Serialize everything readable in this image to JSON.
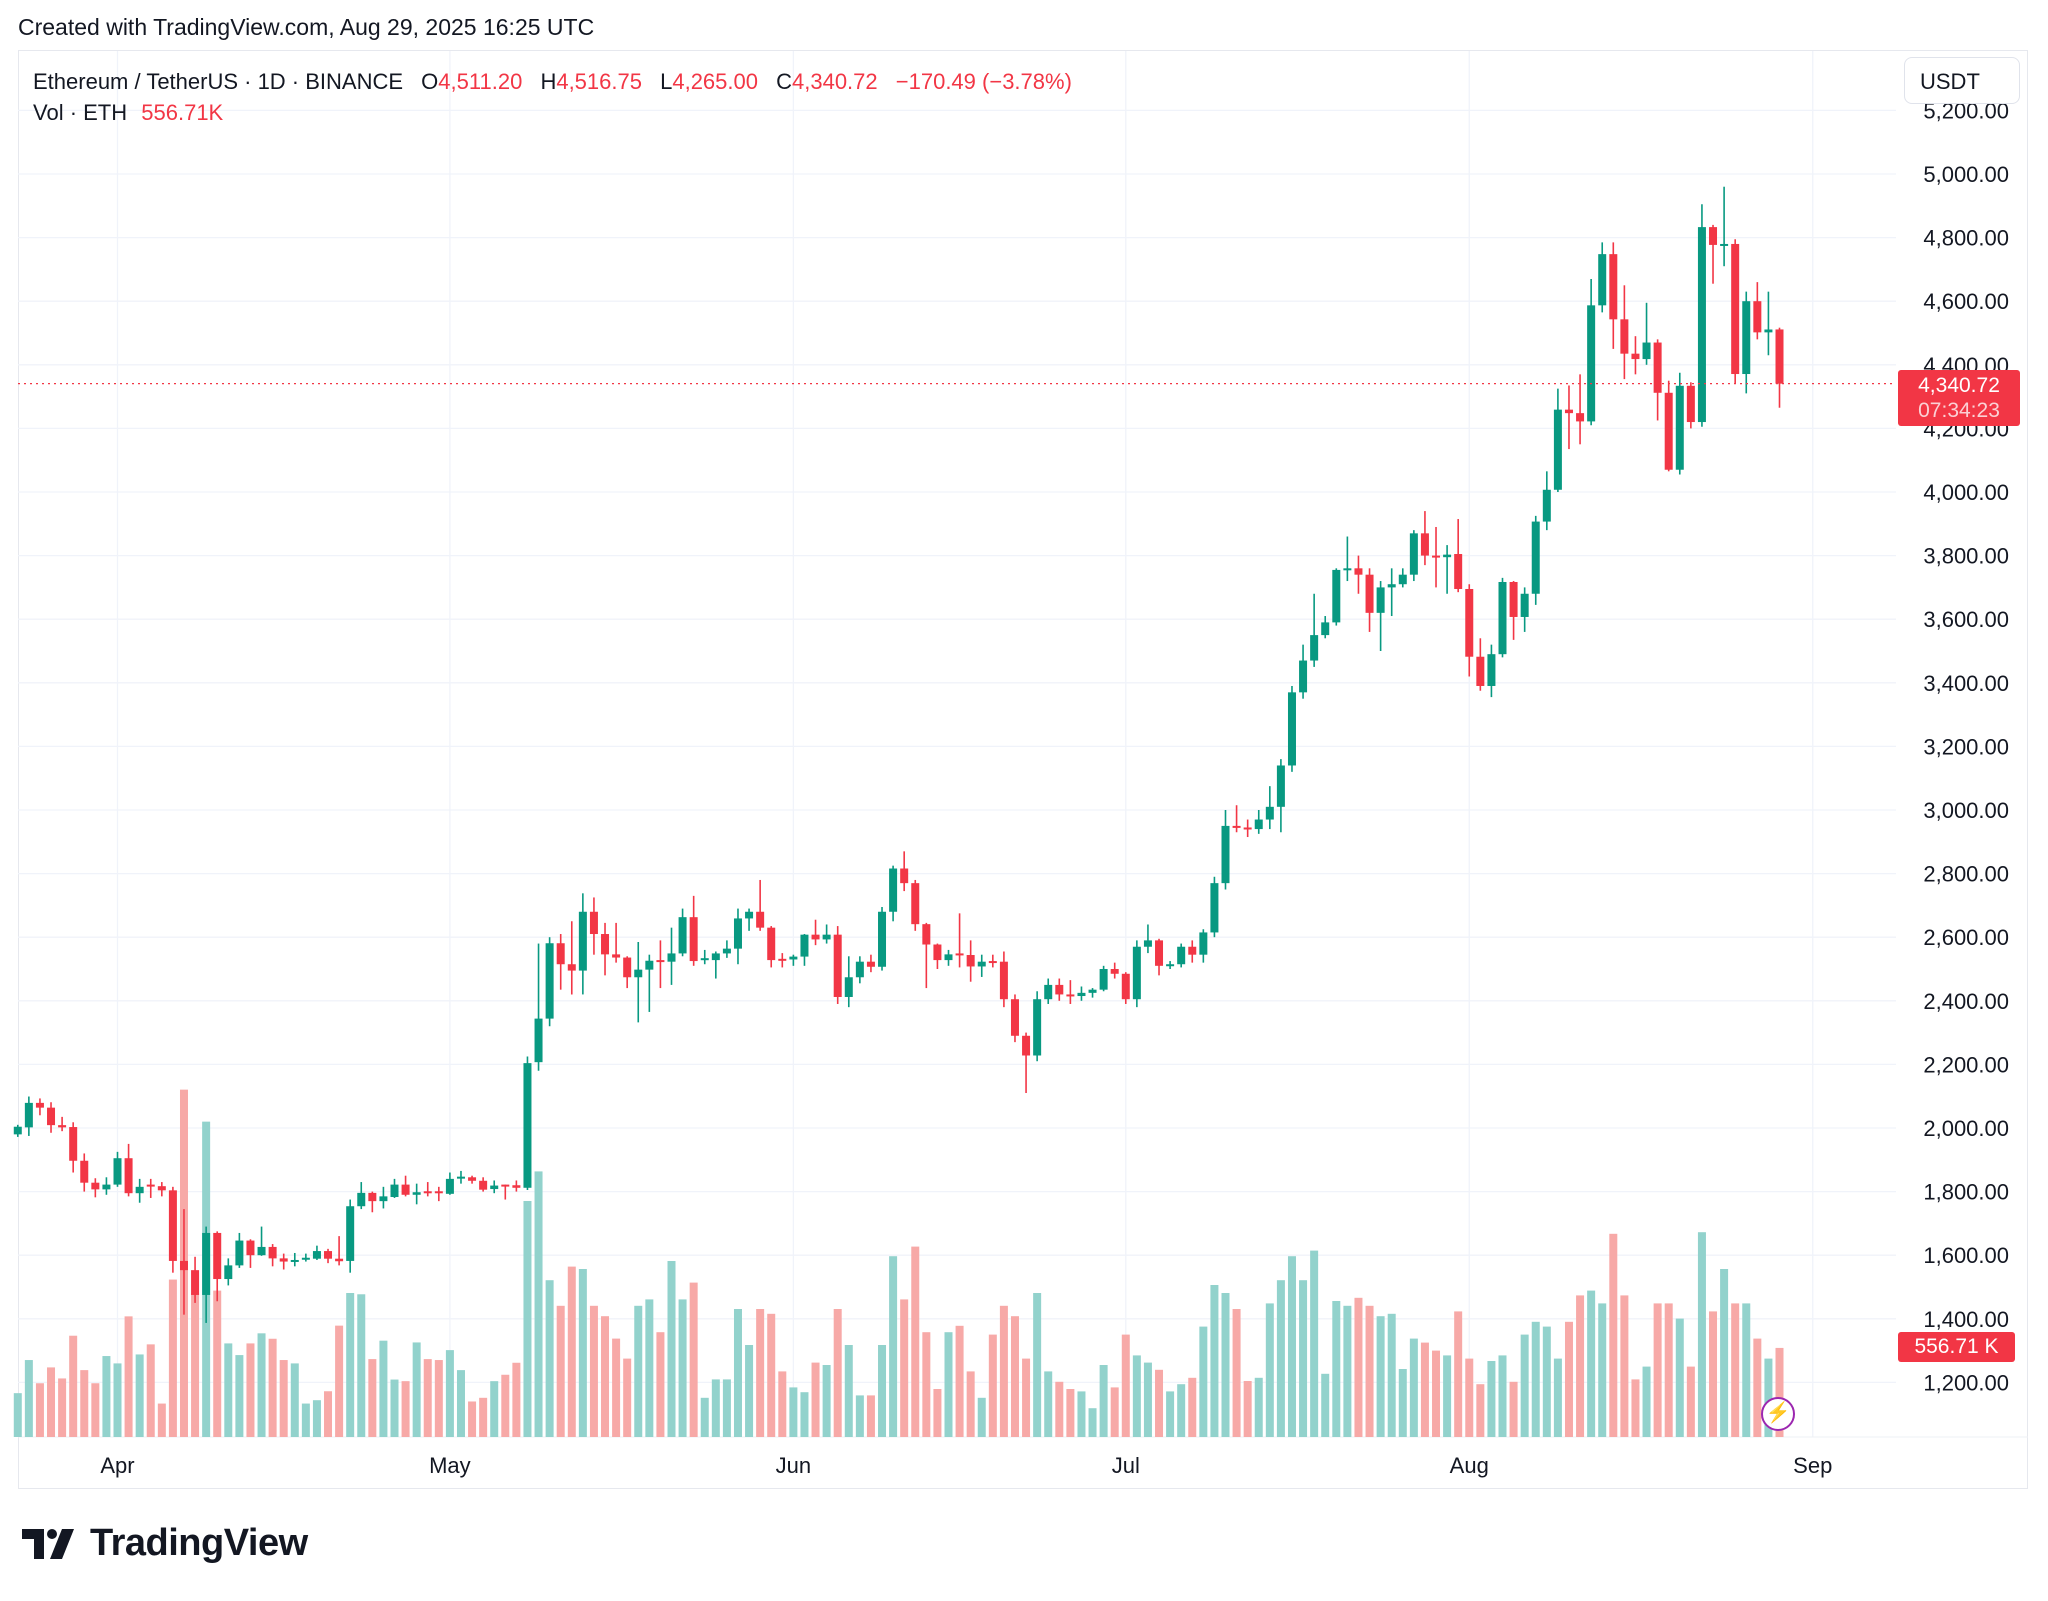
{
  "created_text": "Created with TradingView.com, Aug 29, 2025 16:25 UTC",
  "legend": {
    "symbol": "Ethereum / TetherUS · 1D · BINANCE",
    "o_label": "O",
    "o": "4,511.20",
    "h_label": "H",
    "h": "4,516.75",
    "l_label": "L",
    "l": "4,265.00",
    "c_label": "C",
    "c": "4,340.72",
    "change": "−170.49 (−3.78%)",
    "vol_label": "Vol · ETH",
    "vol": "556.71K"
  },
  "currency_button": "USDT",
  "price_tag": {
    "price": "4,340.72",
    "countdown": "07:34:23"
  },
  "volume_tag": "556.71 K",
  "brand": "TradingView",
  "colors": {
    "up": "#089981",
    "down": "#f23645",
    "up_volume": "#92d2cc",
    "down_volume": "#f7a9a7",
    "grid": "#f0f3fa",
    "last_price_line": "#f23645",
    "alert_icon": "#9c27b0"
  },
  "icons": {
    "alert": "lightning-icon",
    "logo": "tradingview-logo-icon"
  },
  "chart_data": {
    "type": "candlestick",
    "symbol": "ETHUSDT",
    "interval": "1D",
    "y_axis": {
      "ticks": [
        5200,
        5000,
        4800,
        4600,
        4400,
        4200,
        4000,
        3800,
        3600,
        3400,
        3200,
        3000,
        2800,
        2600,
        2400,
        2200,
        2000,
        1800,
        1600,
        1400,
        1200
      ],
      "tick_labels": [
        "5,200.00",
        "5,000.00",
        "4,800.00",
        "4,600.00",
        "4,400.00",
        "4,200.00",
        "4,000.00",
        "3,800.00",
        "3,600.00",
        "3,400.00",
        "3,200.00",
        "3,000.00",
        "2,800.00",
        "2,600.00",
        "2,400.00",
        "2,200.00",
        "2,000.00",
        "1,800.00",
        "1,600.00",
        "1,400.00",
        "1,200.00"
      ],
      "side": "right"
    },
    "x_axis": {
      "ticks": [
        "2025-04-01",
        "2025-05-01",
        "2025-06-01",
        "2025-07-01",
        "2025-08-01",
        "2025-09-01"
      ],
      "tick_labels": [
        "Apr",
        "May",
        "Jun",
        "Jul",
        "Aug",
        "Sep"
      ]
    },
    "grid": true,
    "last_price": 4340.72,
    "volume_unit": "K ETH",
    "columns": [
      "date",
      "open",
      "high",
      "low",
      "close",
      "volume"
    ],
    "candles": [
      [
        "2025-03-23",
        1980,
        2010,
        1972,
        2004,
        274
      ],
      [
        "2025-03-24",
        2002,
        2099,
        1975,
        2079,
        481
      ],
      [
        "2025-03-25",
        2079,
        2093,
        2040,
        2064,
        336
      ],
      [
        "2025-03-26",
        2064,
        2081,
        1985,
        2009,
        435
      ],
      [
        "2025-03-27",
        2009,
        2035,
        1990,
        2002,
        366
      ],
      [
        "2025-03-28",
        2003,
        2018,
        1860,
        1897,
        633
      ],
      [
        "2025-03-29",
        1897,
        1920,
        1800,
        1828,
        418
      ],
      [
        "2025-03-30",
        1828,
        1842,
        1782,
        1807,
        336
      ],
      [
        "2025-03-31",
        1807,
        1845,
        1790,
        1822,
        506
      ],
      [
        "2025-04-01",
        1822,
        1925,
        1815,
        1905,
        460
      ],
      [
        "2025-04-02",
        1905,
        1950,
        1785,
        1795,
        754
      ],
      [
        "2025-04-03",
        1795,
        1840,
        1765,
        1815,
        516
      ],
      [
        "2025-04-04",
        1822,
        1840,
        1780,
        1819,
        579
      ],
      [
        "2025-04-05",
        1817,
        1830,
        1785,
        1804,
        209
      ],
      [
        "2025-04-06",
        1804,
        1815,
        1545,
        1582,
        984
      ],
      [
        "2025-04-07",
        1582,
        1745,
        1413,
        1553,
        2171
      ],
      [
        "2025-04-08",
        1553,
        1595,
        1450,
        1475,
        900
      ],
      [
        "2025-04-09",
        1475,
        1690,
        1387,
        1670,
        1971
      ],
      [
        "2025-04-10",
        1670,
        1675,
        1455,
        1525,
        915
      ],
      [
        "2025-04-11",
        1525,
        1590,
        1505,
        1568,
        585
      ],
      [
        "2025-04-12",
        1568,
        1670,
        1560,
        1646,
        512
      ],
      [
        "2025-04-13",
        1646,
        1650,
        1560,
        1600,
        585
      ],
      [
        "2025-04-14",
        1600,
        1690,
        1598,
        1626,
        648
      ],
      [
        "2025-04-15",
        1626,
        1635,
        1565,
        1590,
        614
      ],
      [
        "2025-04-16",
        1590,
        1605,
        1555,
        1580,
        481
      ],
      [
        "2025-04-17",
        1582,
        1607,
        1565,
        1585,
        460
      ],
      [
        "2025-04-18",
        1588,
        1605,
        1580,
        1592,
        209
      ],
      [
        "2025-04-19",
        1589,
        1630,
        1585,
        1613,
        230
      ],
      [
        "2025-04-20",
        1613,
        1620,
        1575,
        1589,
        286
      ],
      [
        "2025-04-21",
        1589,
        1660,
        1568,
        1581,
        696
      ],
      [
        "2025-04-22",
        1582,
        1775,
        1545,
        1754,
        900
      ],
      [
        "2025-04-23",
        1754,
        1830,
        1745,
        1796,
        892
      ],
      [
        "2025-04-24",
        1796,
        1800,
        1735,
        1770,
        487
      ],
      [
        "2025-04-25",
        1770,
        1815,
        1747,
        1785,
        602
      ],
      [
        "2025-04-26",
        1783,
        1840,
        1780,
        1822,
        359
      ],
      [
        "2025-04-27",
        1822,
        1850,
        1785,
        1790,
        349
      ],
      [
        "2025-04-28",
        1790,
        1825,
        1760,
        1798,
        591
      ],
      [
        "2025-04-29",
        1801,
        1830,
        1785,
        1799,
        487
      ],
      [
        "2025-04-30",
        1801,
        1815,
        1770,
        1798,
        481
      ],
      [
        "2025-05-01",
        1793,
        1860,
        1790,
        1840,
        543
      ],
      [
        "2025-05-02",
        1843,
        1865,
        1825,
        1847,
        418
      ],
      [
        "2025-05-03",
        1845,
        1850,
        1825,
        1834,
        222
      ],
      [
        "2025-05-04",
        1834,
        1845,
        1800,
        1806,
        245
      ],
      [
        "2025-05-05",
        1808,
        1835,
        1795,
        1819,
        349
      ],
      [
        "2025-05-06",
        1822,
        1822,
        1775,
        1820,
        389
      ],
      [
        "2025-05-07",
        1820,
        1835,
        1800,
        1812,
        464
      ],
      [
        "2025-05-08",
        1812,
        2225,
        1805,
        2204,
        1475
      ],
      [
        "2025-05-09",
        2207,
        2580,
        2180,
        2344,
        1660
      ],
      [
        "2025-05-10",
        2344,
        2600,
        2320,
        2581,
        980
      ],
      [
        "2025-05-11",
        2581,
        2610,
        2435,
        2515,
        820
      ],
      [
        "2025-05-12",
        2515,
        2650,
        2420,
        2495,
        1065
      ],
      [
        "2025-05-13",
        2495,
        2738,
        2420,
        2680,
        1050
      ],
      [
        "2025-05-14",
        2680,
        2725,
        2545,
        2610,
        820
      ],
      [
        "2025-05-15",
        2610,
        2645,
        2480,
        2546,
        755
      ],
      [
        "2025-05-16",
        2546,
        2645,
        2520,
        2536,
        615
      ],
      [
        "2025-05-17",
        2536,
        2540,
        2440,
        2474,
        490
      ],
      [
        "2025-05-18",
        2474,
        2585,
        2332,
        2498,
        820
      ],
      [
        "2025-05-19",
        2498,
        2545,
        2365,
        2526,
        860
      ],
      [
        "2025-05-20",
        2528,
        2590,
        2440,
        2526,
        655
      ],
      [
        "2025-05-21",
        2523,
        2630,
        2450,
        2549,
        1100
      ],
      [
        "2025-05-22",
        2549,
        2690,
        2540,
        2663,
        860
      ],
      [
        "2025-05-23",
        2663,
        2730,
        2510,
        2525,
        965
      ],
      [
        "2025-05-24",
        2530,
        2560,
        2515,
        2534,
        245
      ],
      [
        "2025-05-25",
        2528,
        2555,
        2470,
        2549,
        360
      ],
      [
        "2025-05-26",
        2549,
        2590,
        2535,
        2564,
        360
      ],
      [
        "2025-05-27",
        2564,
        2690,
        2515,
        2659,
        800
      ],
      [
        "2025-05-28",
        2659,
        2690,
        2620,
        2680,
        575
      ],
      [
        "2025-05-29",
        2680,
        2780,
        2620,
        2630,
        800
      ],
      [
        "2025-05-30",
        2630,
        2635,
        2505,
        2528,
        770
      ],
      [
        "2025-05-31",
        2532,
        2550,
        2505,
        2530,
        410
      ],
      [
        "2025-06-01",
        2530,
        2545,
        2510,
        2539,
        310
      ],
      [
        "2025-06-02",
        2539,
        2610,
        2510,
        2608,
        280
      ],
      [
        "2025-06-03",
        2608,
        2655,
        2575,
        2593,
        465
      ],
      [
        "2025-06-04",
        2593,
        2640,
        2580,
        2608,
        450
      ],
      [
        "2025-06-05",
        2608,
        2635,
        2390,
        2412,
        800
      ],
      [
        "2025-06-06",
        2412,
        2540,
        2380,
        2474,
        575
      ],
      [
        "2025-06-07",
        2474,
        2540,
        2455,
        2523,
        260
      ],
      [
        "2025-06-08",
        2523,
        2545,
        2490,
        2507,
        260
      ],
      [
        "2025-06-09",
        2507,
        2695,
        2495,
        2680,
        575
      ],
      [
        "2025-06-10",
        2680,
        2825,
        2650,
        2816,
        1130
      ],
      [
        "2025-06-11",
        2816,
        2870,
        2745,
        2770,
        860
      ],
      [
        "2025-06-12",
        2770,
        2780,
        2620,
        2641,
        1190
      ],
      [
        "2025-06-13",
        2641,
        2645,
        2440,
        2577,
        655
      ],
      [
        "2025-06-14",
        2577,
        2580,
        2500,
        2528,
        300
      ],
      [
        "2025-06-15",
        2528,
        2560,
        2510,
        2546,
        655
      ],
      [
        "2025-06-16",
        2549,
        2675,
        2505,
        2547,
        695
      ],
      [
        "2025-06-17",
        2544,
        2590,
        2460,
        2508,
        410
      ],
      [
        "2025-06-18",
        2508,
        2545,
        2475,
        2523,
        245
      ],
      [
        "2025-06-19",
        2525,
        2545,
        2505,
        2523,
        640
      ],
      [
        "2025-06-20",
        2523,
        2555,
        2380,
        2405,
        820
      ],
      [
        "2025-06-21",
        2405,
        2420,
        2270,
        2290,
        755
      ],
      [
        "2025-06-22",
        2290,
        2300,
        2110,
        2228,
        490
      ],
      [
        "2025-06-23",
        2228,
        2430,
        2210,
        2405,
        900
      ],
      [
        "2025-06-24",
        2405,
        2470,
        2390,
        2450,
        410
      ],
      [
        "2025-06-25",
        2450,
        2470,
        2400,
        2420,
        345
      ],
      [
        "2025-06-26",
        2420,
        2465,
        2390,
        2415,
        300
      ],
      [
        "2025-06-27",
        2415,
        2445,
        2400,
        2425,
        285
      ],
      [
        "2025-06-28",
        2425,
        2440,
        2410,
        2435,
        180
      ],
      [
        "2025-06-29",
        2435,
        2510,
        2430,
        2500,
        450
      ],
      [
        "2025-06-30",
        2500,
        2520,
        2470,
        2485,
        310
      ],
      [
        "2025-07-01",
        2485,
        2490,
        2390,
        2405,
        640
      ],
      [
        "2025-07-02",
        2405,
        2590,
        2380,
        2570,
        510
      ],
      [
        "2025-07-03",
        2570,
        2640,
        2550,
        2590,
        465
      ],
      [
        "2025-07-04",
        2590,
        2595,
        2480,
        2510,
        420
      ],
      [
        "2025-07-05",
        2510,
        2525,
        2500,
        2515,
        285
      ],
      [
        "2025-07-06",
        2515,
        2580,
        2505,
        2570,
        330
      ],
      [
        "2025-07-07",
        2570,
        2590,
        2520,
        2545,
        370
      ],
      [
        "2025-07-08",
        2545,
        2625,
        2520,
        2615,
        690
      ],
      [
        "2025-07-09",
        2615,
        2790,
        2600,
        2770,
        950
      ],
      [
        "2025-07-10",
        2770,
        3000,
        2750,
        2950,
        900
      ],
      [
        "2025-07-11",
        2950,
        3015,
        2930,
        2945,
        800
      ],
      [
        "2025-07-12",
        2945,
        2970,
        2915,
        2940,
        350
      ],
      [
        "2025-07-13",
        2940,
        3000,
        2925,
        2970,
        370
      ],
      [
        "2025-07-14",
        2970,
        3075,
        2940,
        3010,
        835
      ],
      [
        "2025-07-15",
        3010,
        3160,
        2930,
        3140,
        980
      ],
      [
        "2025-07-16",
        3140,
        3390,
        3120,
        3370,
        1130
      ],
      [
        "2025-07-17",
        3370,
        3520,
        3350,
        3470,
        980
      ],
      [
        "2025-07-18",
        3470,
        3680,
        3450,
        3550,
        1165
      ],
      [
        "2025-07-19",
        3550,
        3610,
        3540,
        3590,
        395
      ],
      [
        "2025-07-20",
        3590,
        3760,
        3580,
        3755,
        850
      ],
      [
        "2025-07-21",
        3755,
        3860,
        3720,
        3760,
        820
      ],
      [
        "2025-07-22",
        3760,
        3800,
        3680,
        3740,
        870
      ],
      [
        "2025-07-23",
        3740,
        3760,
        3560,
        3620,
        820
      ],
      [
        "2025-07-24",
        3620,
        3720,
        3500,
        3700,
        755
      ],
      [
        "2025-07-25",
        3700,
        3760,
        3610,
        3710,
        770
      ],
      [
        "2025-07-26",
        3710,
        3760,
        3700,
        3740,
        425
      ],
      [
        "2025-07-27",
        3740,
        3880,
        3720,
        3870,
        615
      ],
      [
        "2025-07-28",
        3870,
        3940,
        3770,
        3800,
        590
      ],
      [
        "2025-07-29",
        3800,
        3890,
        3700,
        3795,
        540
      ],
      [
        "2025-07-30",
        3795,
        3833,
        3680,
        3803,
        510
      ],
      [
        "2025-07-31",
        3805,
        3915,
        3685,
        3695,
        785
      ],
      [
        "2025-08-01",
        3695,
        3710,
        3420,
        3482,
        490
      ],
      [
        "2025-08-02",
        3482,
        3540,
        3375,
        3390,
        330
      ],
      [
        "2025-08-03",
        3390,
        3520,
        3355,
        3490,
        475
      ],
      [
        "2025-08-04",
        3490,
        3730,
        3480,
        3717,
        510
      ],
      [
        "2025-08-05",
        3717,
        3720,
        3535,
        3607,
        345
      ],
      [
        "2025-08-06",
        3607,
        3700,
        3560,
        3680,
        640
      ],
      [
        "2025-08-07",
        3680,
        3925,
        3645,
        3907,
        720
      ],
      [
        "2025-08-08",
        3907,
        4065,
        3880,
        4007,
        690
      ],
      [
        "2025-08-09",
        4007,
        4325,
        4000,
        4259,
        490
      ],
      [
        "2025-08-10",
        4259,
        4335,
        4135,
        4248,
        720
      ],
      [
        "2025-08-11",
        4248,
        4370,
        4150,
        4222,
        885
      ],
      [
        "2025-08-12",
        4222,
        4670,
        4210,
        4587,
        915
      ],
      [
        "2025-08-13",
        4587,
        4785,
        4565,
        4748,
        835
      ],
      [
        "2025-08-14",
        4748,
        4785,
        4450,
        4543,
        1270
      ],
      [
        "2025-08-15",
        4543,
        4650,
        4355,
        4435,
        885
      ],
      [
        "2025-08-16",
        4435,
        4490,
        4370,
        4418,
        360
      ],
      [
        "2025-08-17",
        4418,
        4595,
        4400,
        4470,
        440
      ],
      [
        "2025-08-18",
        4470,
        4480,
        4225,
        4312,
        835
      ],
      [
        "2025-08-19",
        4312,
        4350,
        4065,
        4070,
        835
      ],
      [
        "2025-08-20",
        4070,
        4375,
        4055,
        4334,
        740
      ],
      [
        "2025-08-21",
        4334,
        4345,
        4200,
        4220,
        440
      ],
      [
        "2025-08-22",
        4220,
        4905,
        4205,
        4833,
        1280
      ],
      [
        "2025-08-23",
        4833,
        4840,
        4655,
        4777,
        785
      ],
      [
        "2025-08-24",
        4775,
        4960,
        4710,
        4780,
        1050
      ],
      [
        "2025-08-25",
        4780,
        4795,
        4340,
        4371,
        835
      ],
      [
        "2025-08-26",
        4371,
        4630,
        4310,
        4600,
        835
      ],
      [
        "2025-08-27",
        4600,
        4660,
        4480,
        4502,
        615
      ],
      [
        "2025-08-28",
        4502,
        4630,
        4430,
        4511,
        490
      ],
      [
        "2025-08-29",
        4511.2,
        4516.75,
        4265.0,
        4340.72,
        556.71
      ]
    ]
  }
}
